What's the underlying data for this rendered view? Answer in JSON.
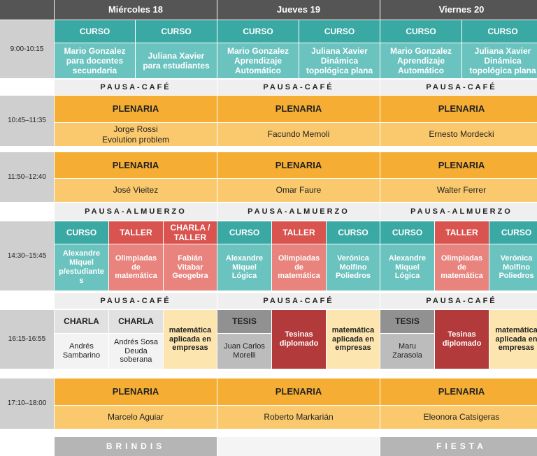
{
  "days": [
    "Miércoles 18",
    "Jueves 19",
    "Viernes 20"
  ],
  "times": [
    "9:00-10:15",
    "10:45–11:35",
    "11:50–12:40",
    "14:30–15:45",
    "16:15-16:55",
    "17:10–18:00"
  ],
  "pauses": {
    "cafe": "PAUSA-CAFÉ",
    "almuerzo": "PAUSA-ALMUERZO"
  },
  "block1": {
    "tags": [
      "CURSO",
      "CURSO",
      "CURSO",
      "CURSO",
      "CURSO",
      "CURSO"
    ],
    "texts": [
      "Mario Gonzalez\npara docentes\nsecundaria",
      "Juliana Xavier\npara estudiantes",
      "Mario Gonzalez\nAprendizaje\nAutomático",
      "Juliana Xavier\nDinámica\ntopológica plana",
      "Mario Gonzalez\nAprendizaje\nAutomático",
      "Juliana Xavier\nDinámica\ntopológica plana"
    ]
  },
  "block2": {
    "tag": "PLENARIA",
    "speakers": [
      "Jorge Rossi\nEvolution problem",
      "Facundo Memoli",
      "Ernesto Mordecki"
    ]
  },
  "block3": {
    "tag": "PLENARIA",
    "speakers": [
      "José Vieitez",
      "Omar Faure",
      "Walter Ferrer"
    ]
  },
  "block4": {
    "tags": [
      "CURSO",
      "TALLER",
      "CHARLA /\nTALLER",
      "CURSO",
      "TALLER",
      "CURSO",
      "CURSO",
      "TALLER",
      "CURSO"
    ],
    "texts": [
      "Alexandre\nMiquel\np/estudiante\ns",
      "Olimpiadas\nde\nmatemática",
      "Fabián\nVitabar\nGeogebra",
      "Alexandre\nMiquel\nLógica",
      "Olimpiadas\nde\nmatemática",
      "Verónica\nMolfino\nPoliedros",
      "Alexandre\nMiquel\nLógica",
      "Olimpiadas\nde\nmatemática",
      "Verónica\nMolfino\nPoliedros"
    ]
  },
  "block5": {
    "tags": [
      "CHARLA",
      "CHARLA",
      "TESIS",
      "TESIS"
    ],
    "texts": [
      "Andrés\nSambarino",
      "Andrés Sosa\nDeuda\nsoberana",
      "Juan Carlos\nMorelli",
      "Maru\nZarasola"
    ],
    "merged": [
      "matemática\naplicada en\nempresas",
      "Tesinas\ndiplomado",
      "matemática\naplicada en\nempresas",
      "Tesinas\ndiplomado",
      "matemática\naplicada en\nempresas"
    ]
  },
  "block6": {
    "tag": "PLENARIA",
    "speakers": [
      "Marcelo Aguiar",
      "Roberto Markarián",
      "Eleonora Catsigeras"
    ]
  },
  "closing": [
    "BRINDIS",
    "FIESTA"
  ]
}
